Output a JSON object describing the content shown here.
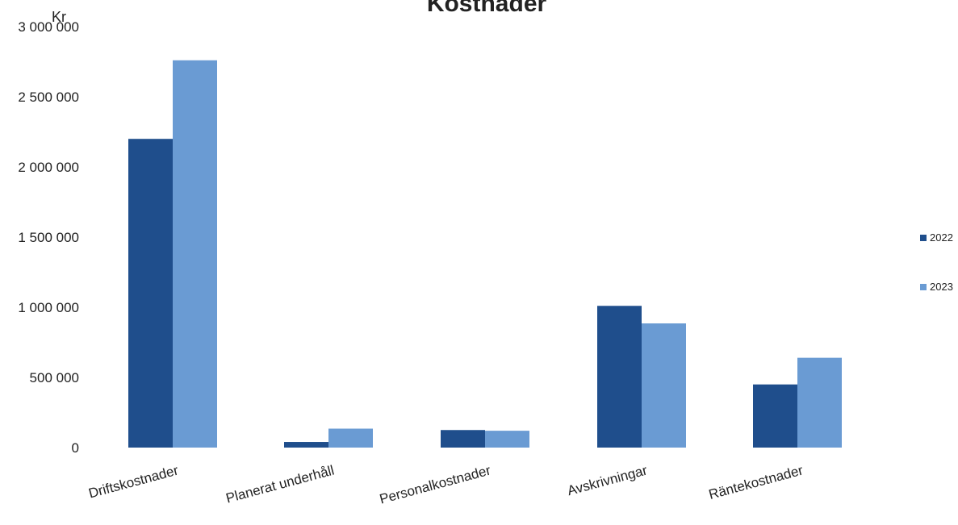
{
  "chart_data": {
    "type": "bar",
    "title": "Kostnader",
    "ylabel": "Kr",
    "xlabel": "",
    "categories": [
      "Driftskostnader",
      "Planerat underhåll",
      "Personalkostnader",
      "Avskrivningar",
      "Räntekostnader"
    ],
    "series": [
      {
        "name": "2022",
        "color": "#1f4e8c",
        "values": [
          2200000,
          40000,
          125000,
          1010000,
          450000
        ]
      },
      {
        "name": "2023",
        "color": "#6a9bd3",
        "values": [
          2760000,
          135000,
          120000,
          885000,
          640000
        ]
      }
    ],
    "ylim": [
      0,
      3000000
    ],
    "yticks": [
      0,
      500000,
      1000000,
      1500000,
      2000000,
      2500000,
      3000000
    ],
    "ytick_labels": [
      "0",
      "500 000",
      "1 000 000",
      "1 500 000",
      "2 000 000",
      "2 500 000",
      "3 000 000"
    ],
    "grid": false,
    "legend": "right"
  }
}
